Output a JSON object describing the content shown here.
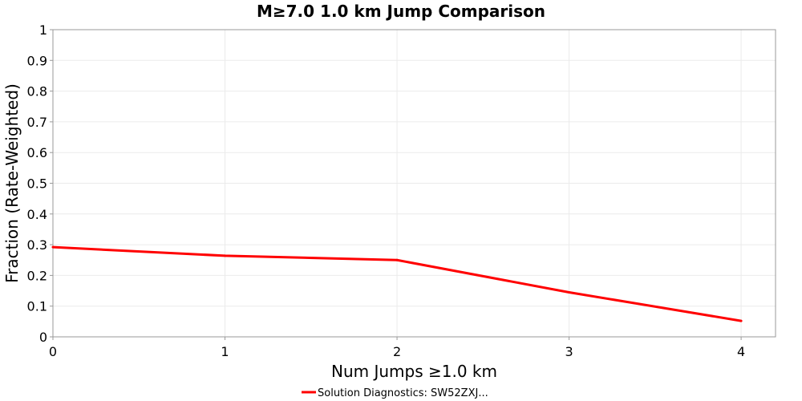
{
  "chart_data": {
    "type": "line",
    "title": "M≥7.0 1.0 km Jump Comparison",
    "xlabel": "Num Jumps ≥1.0 km",
    "ylabel": "Fraction (Rate-Weighted)",
    "xlim": [
      0,
      4.2
    ],
    "ylim": [
      0,
      1
    ],
    "x_ticks": [
      "0",
      "1",
      "2",
      "3",
      "4"
    ],
    "y_ticks": [
      "0",
      "0.1",
      "0.2",
      "0.3",
      "0.4",
      "0.5",
      "0.6",
      "0.7",
      "0.8",
      "0.9",
      "1"
    ],
    "grid": true,
    "legend_position": "bottom-center",
    "series": [
      {
        "name": "Solution Diagnostics: SW52ZXJ...",
        "color": "#ff0000",
        "x": [
          0,
          1,
          2,
          3,
          4
        ],
        "values": [
          0.292,
          0.264,
          0.25,
          0.145,
          0.052
        ]
      }
    ]
  }
}
